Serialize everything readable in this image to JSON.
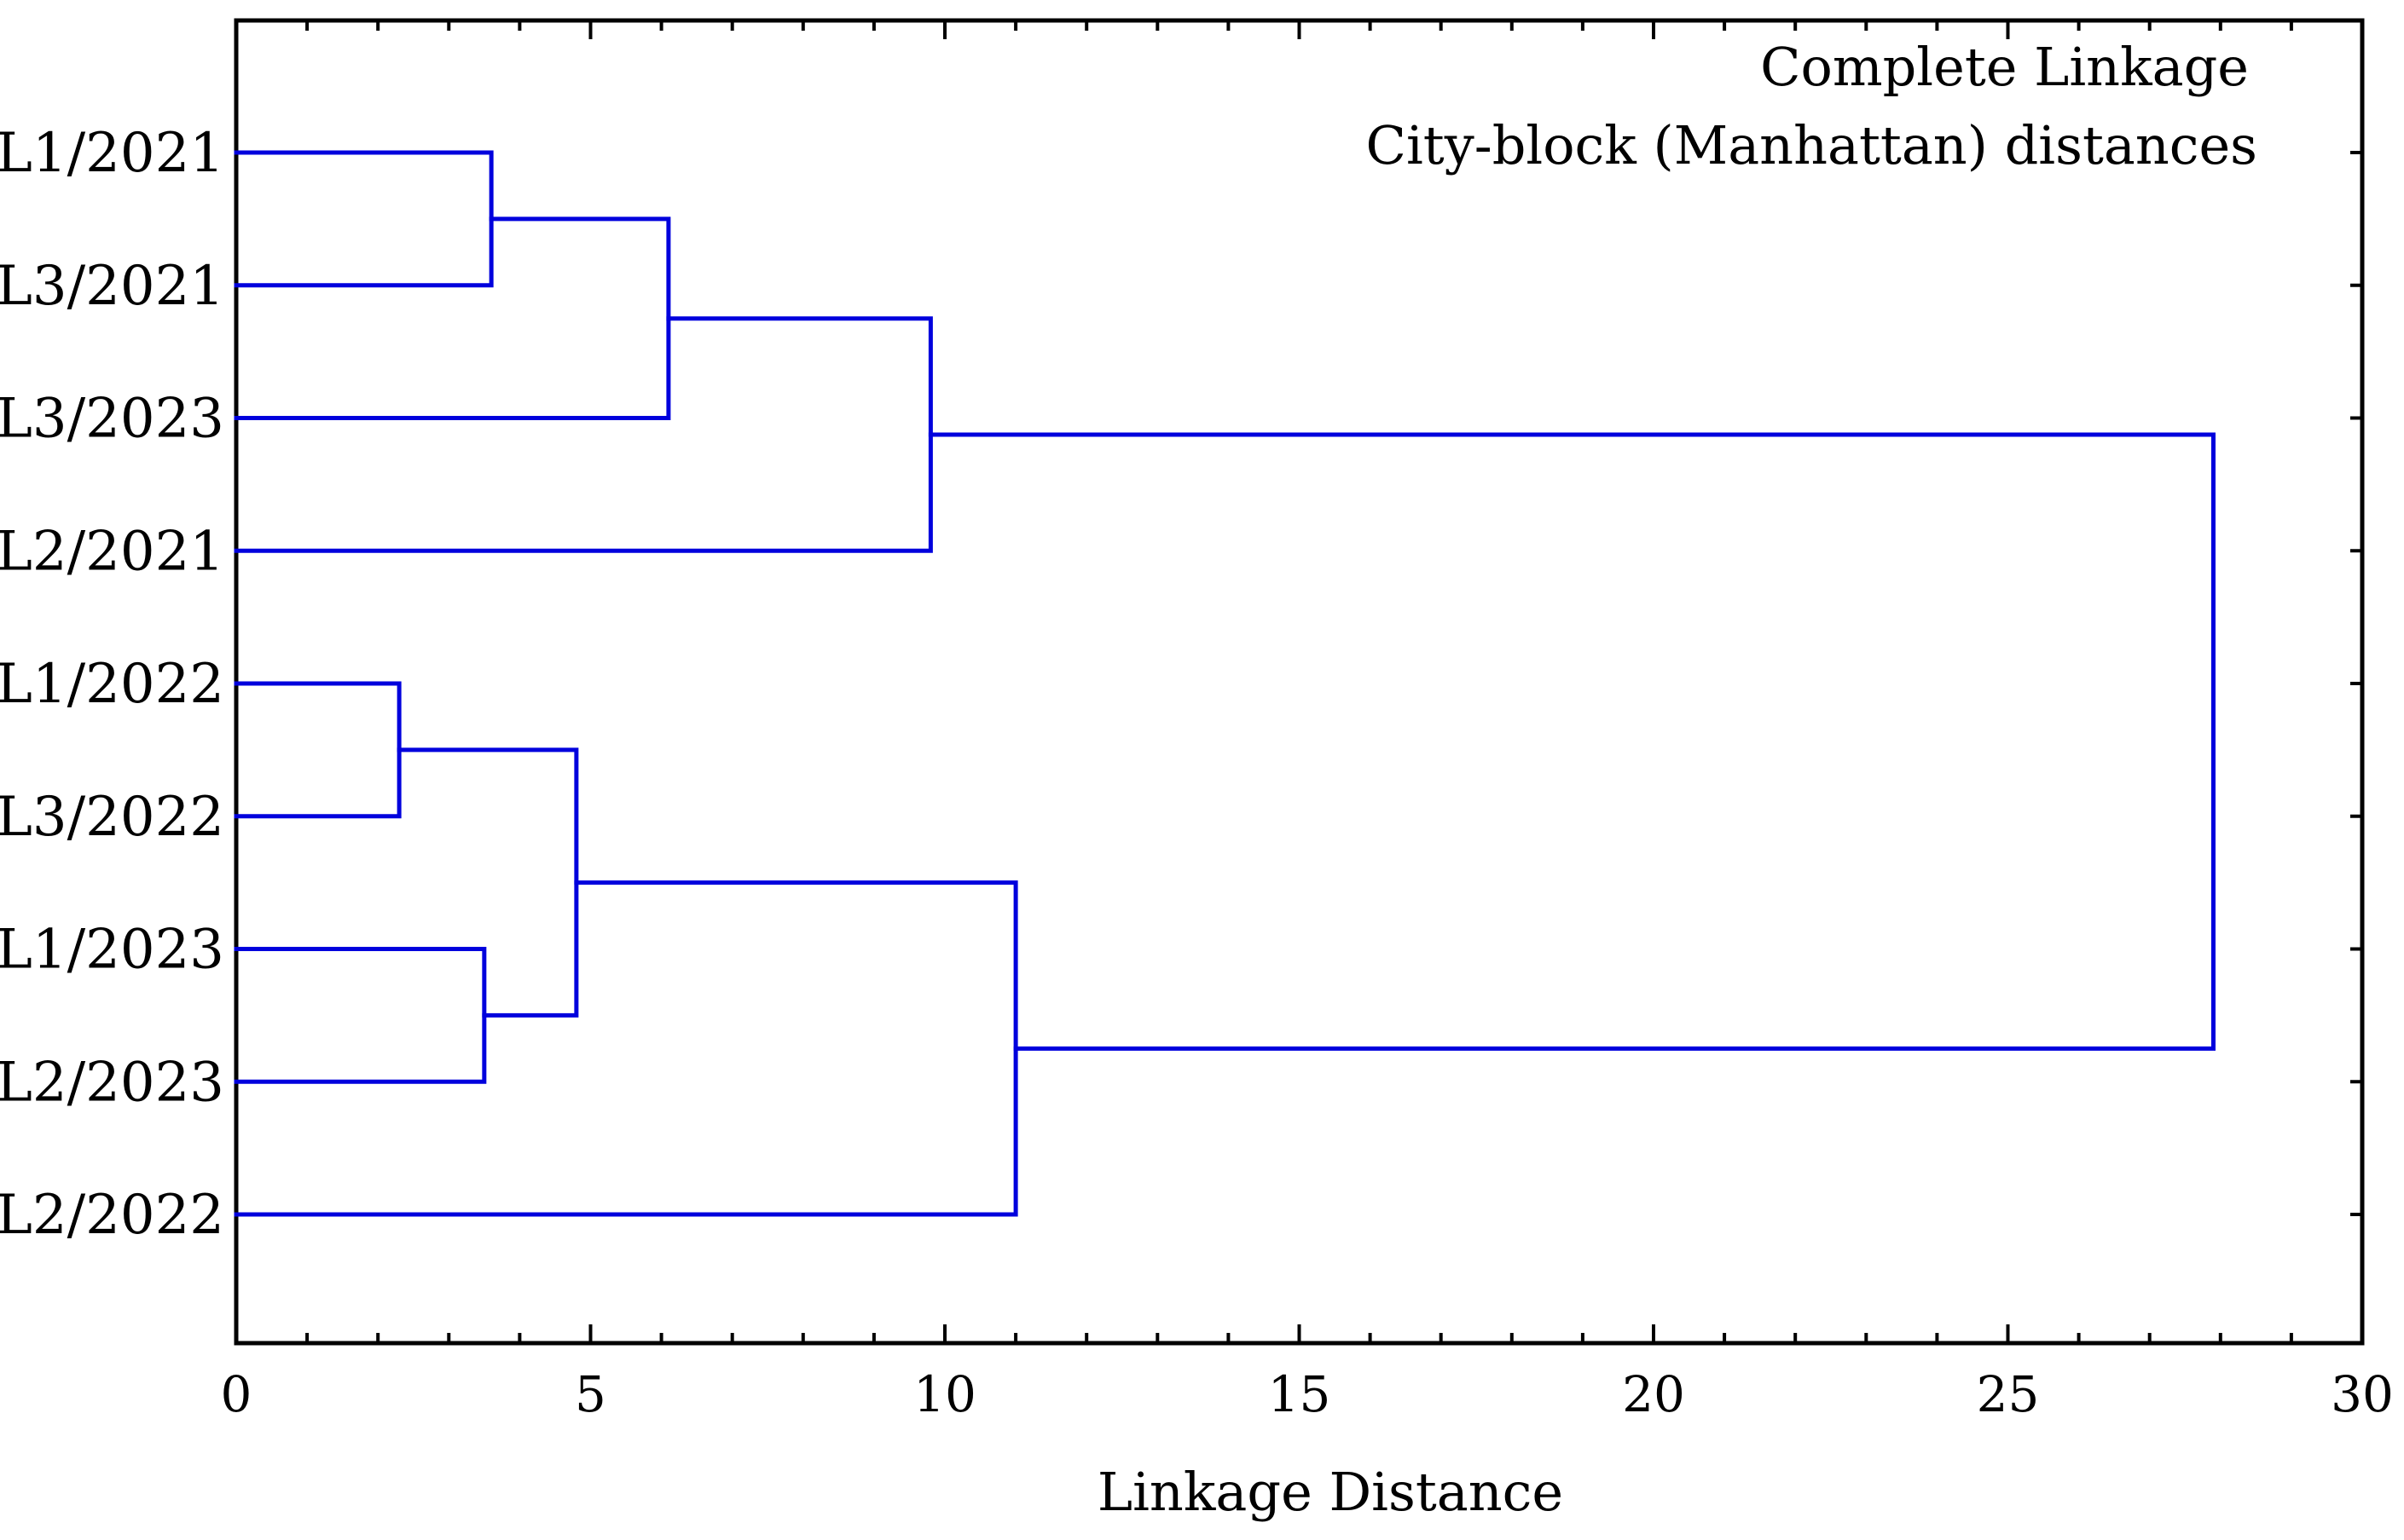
{
  "chart_data": {
    "type": "dendrogram",
    "orientation": "horizontal",
    "annotations": [
      "Complete Linkage",
      "City-block (Manhattan) distances"
    ],
    "xlabel": "Linkage Distance",
    "xlim": [
      0,
      30
    ],
    "xticks": [
      0,
      5,
      10,
      15,
      20,
      25,
      30
    ],
    "leaves": [
      "L1/2021",
      "L3/2021",
      "L3/2023",
      "L2/2021",
      "L1/2022",
      "L3/2022",
      "L1/2023",
      "L2/2023",
      "L2/2022"
    ],
    "merges": [
      {
        "id": "m1",
        "left": "L1/2021",
        "right": "L3/2021",
        "distance": 3.6
      },
      {
        "id": "m2",
        "left": "m1",
        "right": "L3/2023",
        "distance": 6.1
      },
      {
        "id": "m3",
        "left": "m2",
        "right": "L2/2021",
        "distance": 9.8
      },
      {
        "id": "m4",
        "left": "L1/2022",
        "right": "L3/2022",
        "distance": 2.3
      },
      {
        "id": "m5",
        "left": "L1/2023",
        "right": "L2/2023",
        "distance": 3.5
      },
      {
        "id": "m6",
        "left": "m4",
        "right": "m5",
        "distance": 4.8
      },
      {
        "id": "m7",
        "left": "m6",
        "right": "L2/2022",
        "distance": 11.0
      },
      {
        "id": "m8",
        "left": "m3",
        "right": "m7",
        "distance": 27.9
      }
    ],
    "line_color": "#0000dd",
    "grid": false
  }
}
